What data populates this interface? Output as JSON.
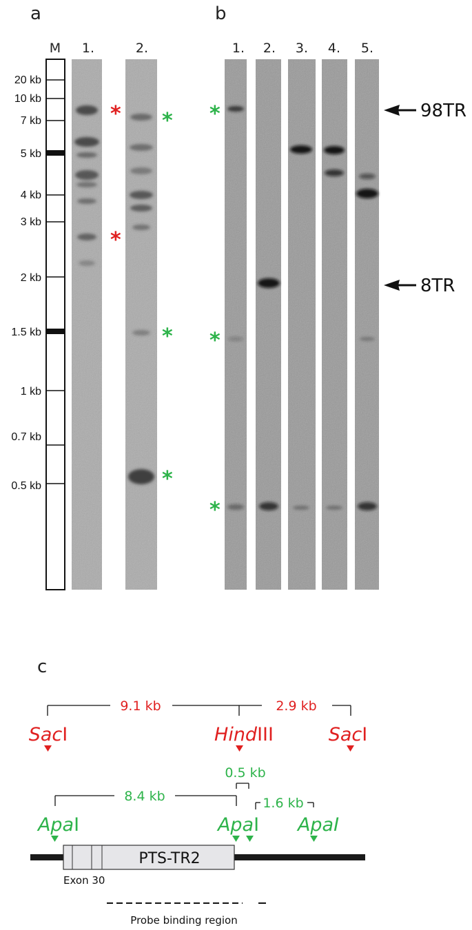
{
  "panels": {
    "a": "a",
    "b": "b",
    "c": "c"
  },
  "colors": {
    "red": "#e02020",
    "green": "#2db34a",
    "text": "#111111",
    "gel_a": "#acacac",
    "gel_b": "#9a9a9a",
    "band": "#1a1a1a"
  },
  "panel_a": {
    "marker_label": "M",
    "lane_labels": [
      "1.",
      "2."
    ],
    "size_labels": [
      "20 kb",
      "10 kb",
      "7 kb",
      "5 kb",
      "4 kb",
      "3 kb",
      "2 kb",
      "1.5 kb",
      "1 kb",
      "0.7 kb",
      "0.5 kb"
    ],
    "star_symbol": "*"
  },
  "panel_b": {
    "lane_labels": [
      "1.",
      "2.",
      "3.",
      "4.",
      "5."
    ],
    "arrows": [
      {
        "label": "98TR"
      },
      {
        "label": "8TR"
      }
    ],
    "star_symbol": "*"
  },
  "panel_c": {
    "sac_distances": [
      "9.1 kb",
      "2.9 kb"
    ],
    "apa_distances": [
      "8.4 kb",
      "0.5 kb",
      "1.6 kb"
    ],
    "sac_sites": [
      {
        "italic": "Sac",
        "roman": "I"
      },
      {
        "italic": "Hind",
        "roman": "III"
      },
      {
        "italic": "Sac",
        "roman": "I"
      }
    ],
    "apa_sites": [
      {
        "italic": "Apa",
        "roman": "I"
      },
      {
        "italic": "Apa",
        "roman": "I"
      },
      {
        "italic": "ApaI",
        "roman": ""
      }
    ],
    "gene_label": "PTS-TR2",
    "exon_label": "Exon 30",
    "probe_label": "Probe binding region"
  }
}
